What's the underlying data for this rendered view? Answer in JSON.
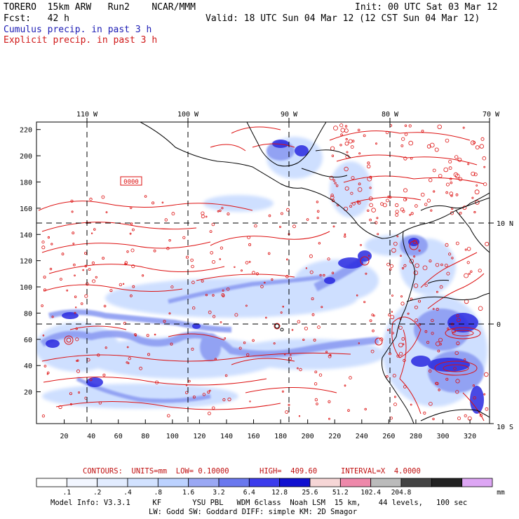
{
  "header": {
    "line1_left": "TORERO  15km ARW   Run2    NCAR/MMM",
    "line1_right": "Init: 00 UTC Sat 03 Mar 12",
    "line2_left": "Fcst:   42 h",
    "line2_right": "Valid: 18 UTC Sun 04 Mar 12 (12 CST Sun 04 Mar 12)",
    "line3": "Cumulus precip. in past 3 h",
    "line4": "Explicit precip. in past 3 h"
  },
  "map": {
    "top_lon_labels": [
      "110 W",
      "100 W",
      "90 W",
      "80 W",
      "70 W"
    ],
    "right_lat_labels": [
      "10 N",
      "0",
      "10 S"
    ],
    "y_grid_labels": [
      "220",
      "200",
      "180",
      "160",
      "140",
      "120",
      "100",
      "80",
      "60",
      "40",
      "20"
    ],
    "x_grid_labels": [
      "20",
      "40",
      "60",
      "80",
      "100",
      "120",
      "140",
      "160",
      "180",
      "200",
      "220",
      "240",
      "260",
      "280",
      "300",
      "320"
    ],
    "contour_label": "0000",
    "colors": {
      "coast": "#000000",
      "explicit_contour": "#dd1111",
      "cumulus_light": "#c9dcff",
      "cumulus_mid": "#8c9cf2",
      "cumulus_dark": "#2a2ae0"
    }
  },
  "contours_line": {
    "prefix": "CONTOURS:  UNITS=mm  LOW= 0.10000",
    "high": "HIGH=  409.60",
    "interval": "INTERVAL=X  4.0000"
  },
  "colorbar": {
    "colors": [
      "#ffffff",
      "#f2f6ff",
      "#e2ecff",
      "#d2e2ff",
      "#bcd2ff",
      "#9aa8f4",
      "#6a78ee",
      "#3c3cec",
      "#1010d0",
      "#f6d6d6",
      "#ee88aa",
      "#bbbbbb",
      "#444444",
      "#222222",
      "#dda6f4"
    ],
    "labels": [
      ".1",
      ".2",
      ".4",
      ".8",
      "1.6",
      "3.2",
      "6.4",
      "12.8",
      "25.6",
      "51.2",
      "102.4",
      "204.8"
    ],
    "unit": "mm"
  },
  "model_info": {
    "line1": "Model Info: V3.3.1     KF       YSU PBL   WDM 6class  Noah LSM  15 km,    44 levels,   100 sec",
    "line2": "LW: Godd SW: Goddard DIFF: simple KM: 2D Smagor"
  }
}
